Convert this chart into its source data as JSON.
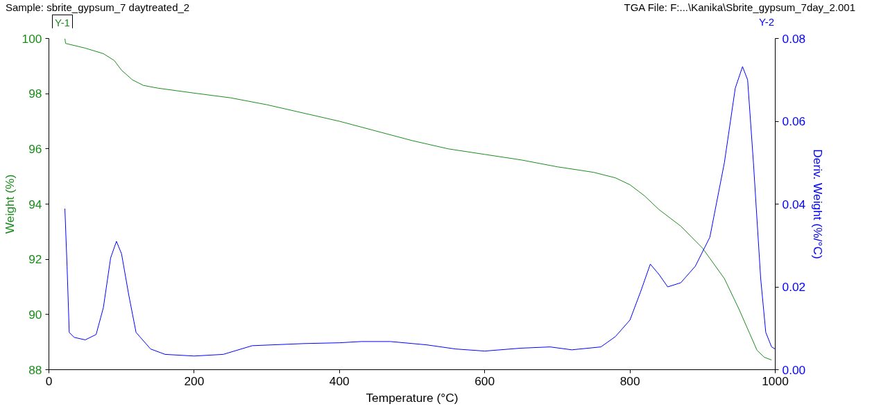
{
  "chart_data": {
    "type": "line",
    "title": "Sample: sbrite_gypsum_7 daytreated_2",
    "subtitle": "TGA File: F:...\\Kanika\\Sbrite_gypsum_7day_2.001",
    "xlabel": "Temperature (°C)",
    "ylabel": "Weight (%)",
    "y2label": "Deriv. Weight (%/°C)",
    "annotations": [
      "Y-1",
      "Y-2"
    ],
    "xlim": [
      0,
      1000
    ],
    "xticks": [
      0,
      200,
      400,
      600,
      800,
      1000
    ],
    "ylim": [
      88,
      100
    ],
    "yticks": [
      88,
      90,
      92,
      94,
      96,
      98,
      100
    ],
    "y2lim": [
      0,
      0.08
    ],
    "y2ticks": [
      {
        "value": 0,
        "label": "0.00"
      },
      {
        "value": 0.02,
        "label": "0.02"
      },
      {
        "value": 0.04,
        "label": "0.04"
      },
      {
        "value": 0.06,
        "label": "0.06"
      },
      {
        "value": 0.08,
        "label": "0.08"
      }
    ],
    "grid": false,
    "line_style": "solid",
    "marker": "none",
    "series": [
      {
        "color": "#1a8c1a",
        "x": [
          22,
          23,
          50,
          75,
          90,
          100,
          115,
          130,
          150,
          200,
          250,
          300,
          350,
          400,
          450,
          500,
          550,
          600,
          650,
          700,
          750,
          780,
          800,
          820,
          840,
          870,
          900,
          930,
          950,
          965,
          975,
          985,
          995
        ],
        "values": [
          100,
          99.82,
          99.65,
          99.45,
          99.2,
          98.85,
          98.5,
          98.3,
          98.2,
          98.02,
          97.85,
          97.6,
          97.3,
          97.0,
          96.65,
          96.3,
          96.0,
          95.8,
          95.6,
          95.35,
          95.15,
          94.95,
          94.7,
          94.3,
          93.8,
          93.2,
          92.4,
          91.3,
          90.2,
          89.3,
          88.7,
          88.45,
          88.35
        ]
      },
      {
        "color": "#0000ff",
        "axis": "y2",
        "x": [
          22,
          25,
          28,
          35,
          50,
          65,
          75,
          85,
          93,
          100,
          110,
          120,
          140,
          160,
          200,
          240,
          280,
          350,
          400,
          430,
          470,
          520,
          560,
          600,
          650,
          690,
          720,
          760,
          780,
          800,
          815,
          828,
          840,
          852,
          870,
          890,
          910,
          930,
          945,
          955,
          962,
          970,
          980,
          987,
          995,
          1000
        ],
        "values": [
          0.0389,
          0.025,
          0.009,
          0.0078,
          0.0072,
          0.0085,
          0.015,
          0.027,
          0.031,
          0.028,
          0.018,
          0.009,
          0.005,
          0.0037,
          0.0033,
          0.0037,
          0.0058,
          0.0063,
          0.0065,
          0.0068,
          0.0068,
          0.006,
          0.005,
          0.0045,
          0.0052,
          0.0055,
          0.0048,
          0.0055,
          0.008,
          0.012,
          0.019,
          0.0255,
          0.023,
          0.02,
          0.021,
          0.025,
          0.032,
          0.05,
          0.068,
          0.0732,
          0.07,
          0.05,
          0.022,
          0.009,
          0.0055,
          0.005
        ]
      }
    ]
  }
}
